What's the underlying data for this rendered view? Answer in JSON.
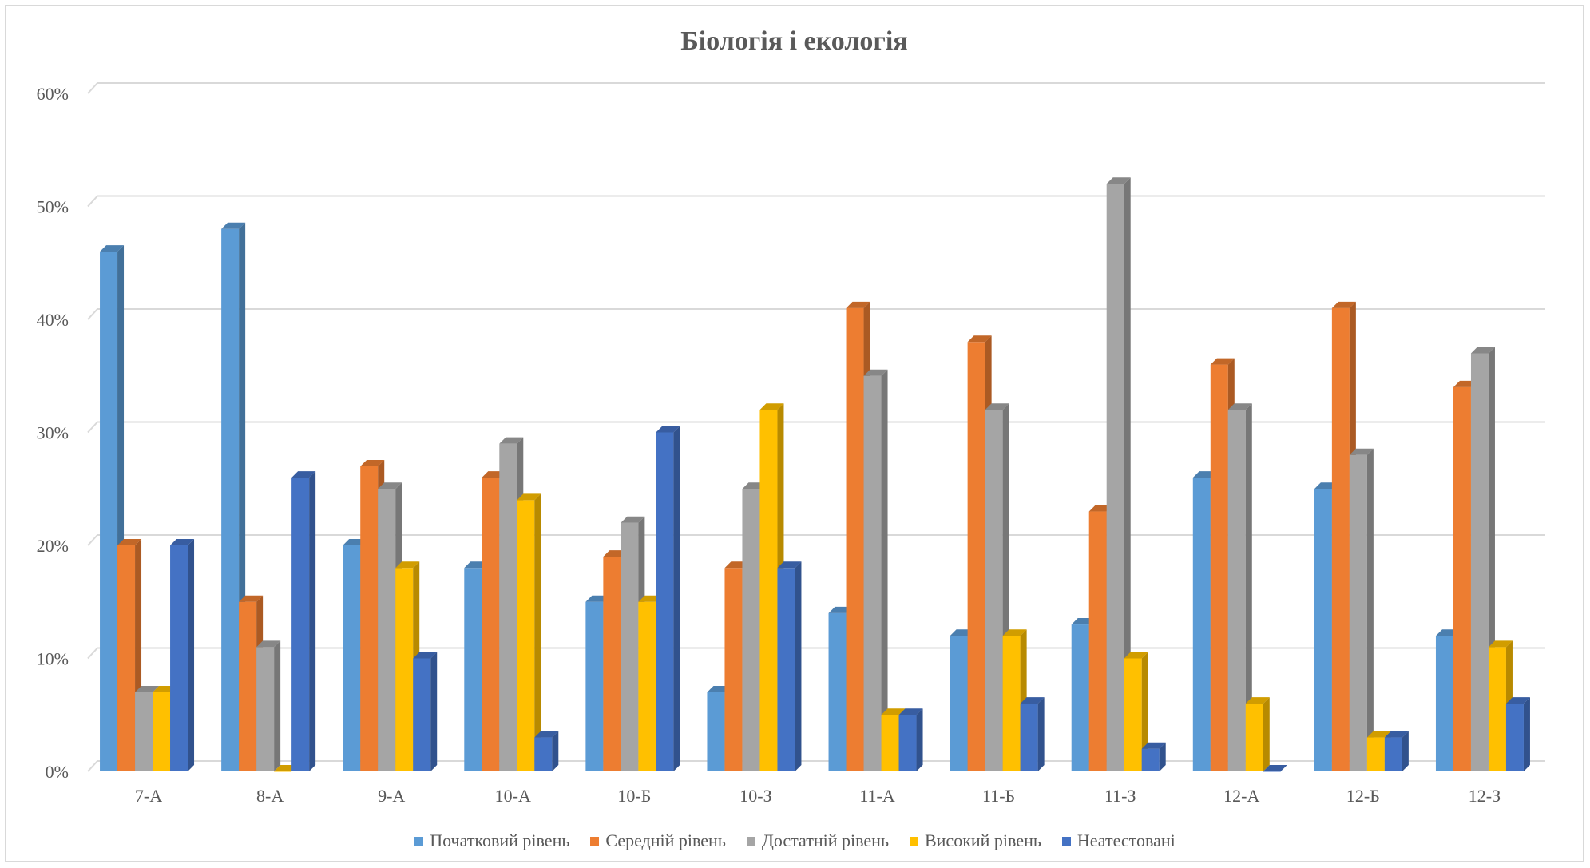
{
  "chart_data": {
    "type": "bar",
    "title": "Біологія і екологія",
    "categories": [
      "7-А",
      "8-А",
      "9-А",
      "10-А",
      "10-Б",
      "10-З",
      "11-А",
      "11-Б",
      "11-З",
      "12-А",
      "12-Б",
      "12-З"
    ],
    "series": [
      {
        "name": "Початковий рівень",
        "color": "#5b9bd5",
        "values": [
          46,
          48,
          20,
          18,
          15,
          7,
          14,
          12,
          13,
          26,
          25,
          12
        ]
      },
      {
        "name": "Середній рівень",
        "color": "#ed7d31",
        "values": [
          20,
          15,
          27,
          26,
          19,
          18,
          41,
          38,
          23,
          36,
          41,
          34
        ]
      },
      {
        "name": "Достатній рівень",
        "color": "#a5a5a5",
        "values": [
          7,
          11,
          25,
          29,
          22,
          25,
          35,
          32,
          52,
          32,
          28,
          37
        ]
      },
      {
        "name": "Високий рівень",
        "color": "#ffc000",
        "values": [
          7,
          0,
          18,
          24,
          15,
          32,
          5,
          12,
          10,
          6,
          3,
          11
        ]
      },
      {
        "name": "Неатестовані",
        "color": "#4472c4",
        "values": [
          20,
          26,
          10,
          3,
          30,
          18,
          5,
          6,
          2,
          0,
          3,
          6
        ]
      }
    ],
    "y_ticks": [
      "0%",
      "10%",
      "20%",
      "30%",
      "40%",
      "50%",
      "60%"
    ],
    "ylim": [
      0,
      60
    ],
    "y_unit": "%",
    "grid": true,
    "legend_position": "bottom"
  }
}
